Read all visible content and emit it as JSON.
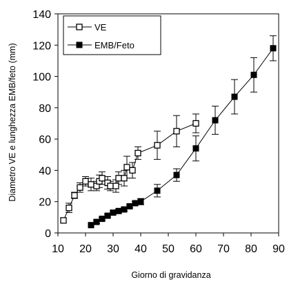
{
  "chart_data": {
    "type": "line",
    "xlabel": "Giorno di gravidanza",
    "ylabel": "Diametro VE e lunghezza EMB/feto (mm)",
    "xlim": [
      10,
      90
    ],
    "ylim": [
      0,
      140
    ],
    "xticks": [
      "10",
      "20",
      "30",
      "40",
      "50",
      "60",
      "70",
      "80",
      "90"
    ],
    "yticks": [
      "0",
      "20",
      "40",
      "60",
      "80",
      "100",
      "120",
      "140"
    ],
    "legend_position": "top-left",
    "grid": false,
    "series": [
      {
        "name": "VE",
        "marker": "open-square",
        "color": "#000000",
        "points": [
          {
            "x": 12,
            "y": 8,
            "err": 0
          },
          {
            "x": 14,
            "y": 16,
            "err": 3
          },
          {
            "x": 16,
            "y": 24,
            "err": 2
          },
          {
            "x": 18,
            "y": 29,
            "err": 3
          },
          {
            "x": 20,
            "y": 33,
            "err": 3
          },
          {
            "x": 22,
            "y": 31,
            "err": 4
          },
          {
            "x": 24,
            "y": 30,
            "err": 3
          },
          {
            "x": 25,
            "y": 33,
            "err": 4
          },
          {
            "x": 26,
            "y": 35,
            "err": 4
          },
          {
            "x": 28,
            "y": 32,
            "err": 4
          },
          {
            "x": 29,
            "y": 30,
            "err": 3
          },
          {
            "x": 31,
            "y": 30,
            "err": 4
          },
          {
            "x": 32,
            "y": 35,
            "err": 4
          },
          {
            "x": 34,
            "y": 35,
            "err": 5
          },
          {
            "x": 35,
            "y": 42,
            "err": 7
          },
          {
            "x": 37,
            "y": 40,
            "err": 5
          },
          {
            "x": 39,
            "y": 51,
            "err": 4
          },
          {
            "x": 46,
            "y": 56,
            "err": 9
          },
          {
            "x": 53,
            "y": 65,
            "err": 10
          },
          {
            "x": 60,
            "y": 70,
            "err": 6
          }
        ]
      },
      {
        "name": "EMB/Feto",
        "marker": "filled-square",
        "color": "#000000",
        "points": [
          {
            "x": 22,
            "y": 5,
            "err": 0
          },
          {
            "x": 24,
            "y": 7,
            "err": 1
          },
          {
            "x": 26,
            "y": 9,
            "err": 1
          },
          {
            "x": 28,
            "y": 11,
            "err": 1
          },
          {
            "x": 30,
            "y": 13,
            "err": 1
          },
          {
            "x": 32,
            "y": 14,
            "err": 1
          },
          {
            "x": 34,
            "y": 15,
            "err": 1
          },
          {
            "x": 36,
            "y": 17,
            "err": 1
          },
          {
            "x": 38,
            "y": 19,
            "err": 1
          },
          {
            "x": 40,
            "y": 20,
            "err": 2
          },
          {
            "x": 46,
            "y": 27,
            "err": 4
          },
          {
            "x": 53,
            "y": 37,
            "err": 4
          },
          {
            "x": 60,
            "y": 54,
            "err": 8
          },
          {
            "x": 67,
            "y": 72,
            "err": 9
          },
          {
            "x": 74,
            "y": 87,
            "err": 11
          },
          {
            "x": 81,
            "y": 101,
            "err": 11
          },
          {
            "x": 88,
            "y": 118,
            "err": 8
          }
        ]
      }
    ]
  }
}
